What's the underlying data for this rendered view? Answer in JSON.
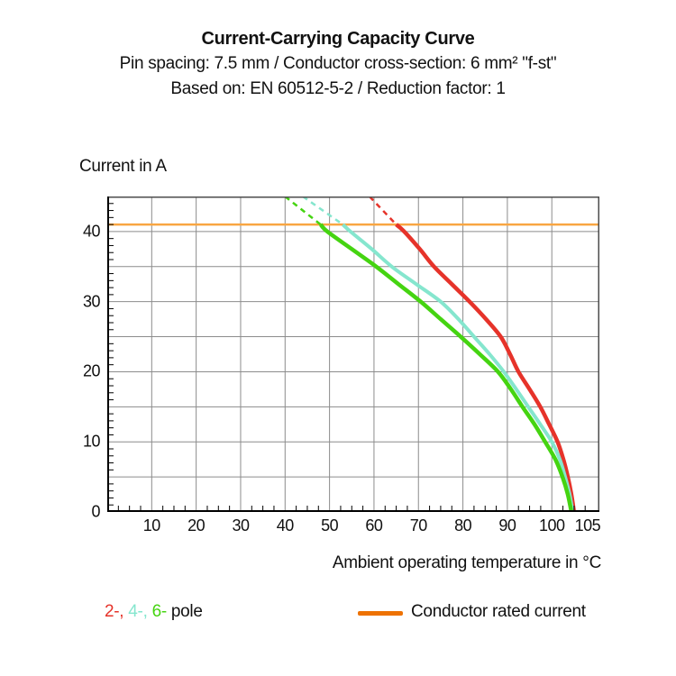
{
  "header": {
    "title": "Current-Carrying Capacity Curve",
    "subtitle1": "Pin spacing: 7.5 mm / Conductor cross-section: 6 mm² \"f-st\"",
    "subtitle2": "Based on: EN 60512-5-2 / Reduction factor: 1"
  },
  "chart_data": {
    "type": "line",
    "title": "Current-Carrying Capacity Curve",
    "ylabel": "Current in A",
    "xlabel": "Ambient operating temperature in °C",
    "xlim": [
      0,
      110.7
    ],
    "ylim": [
      0,
      45
    ],
    "grid": "on",
    "x_gridlines": [
      10,
      20,
      30,
      40,
      50,
      60,
      70,
      80,
      90,
      100
    ],
    "y_gridlines": [
      5,
      10,
      15,
      20,
      25,
      30,
      35,
      40
    ],
    "x_minor_tick_step": 2.5,
    "y_minor_tick_step": 1,
    "x_tick_labels": [
      {
        "v": 10,
        "label": "10"
      },
      {
        "v": 20,
        "label": "20"
      },
      {
        "v": 30,
        "label": "30"
      },
      {
        "v": 40,
        "label": "40"
      },
      {
        "v": 50,
        "label": "50"
      },
      {
        "v": 60,
        "label": "60"
      },
      {
        "v": 70,
        "label": "70"
      },
      {
        "v": 80,
        "label": "80"
      },
      {
        "v": 90,
        "label": "90"
      },
      {
        "v": 100,
        "label": "100"
      },
      {
        "v": 105,
        "label": "105",
        "dx": 15
      }
    ],
    "y_tick_labels": [
      {
        "v": 0,
        "label": "0"
      },
      {
        "v": 10,
        "label": "10"
      },
      {
        "v": 20,
        "label": "20"
      },
      {
        "v": 30,
        "label": "30"
      },
      {
        "v": 40,
        "label": "40"
      }
    ],
    "rated_current_line": {
      "value": 41,
      "color": "#F9A642",
      "label": "Conductor rated current"
    },
    "series": [
      {
        "name": "2-pole",
        "color": "#E6332A",
        "width": 4.5,
        "dashed_lead": [
          [
            59,
            45
          ],
          [
            65,
            41
          ]
        ],
        "points": [
          [
            65,
            41
          ],
          [
            66.8,
            40
          ],
          [
            70.3,
            37.5
          ],
          [
            73.5,
            35
          ],
          [
            77.5,
            32.5
          ],
          [
            81.5,
            30
          ],
          [
            85.2,
            27.5
          ],
          [
            88.5,
            25
          ],
          [
            90.6,
            22.5
          ],
          [
            92.5,
            20
          ],
          [
            95,
            17.5
          ],
          [
            97.4,
            15
          ],
          [
            99.4,
            12.5
          ],
          [
            101.3,
            10
          ],
          [
            102.6,
            7.5
          ],
          [
            103.6,
            5
          ],
          [
            104.4,
            2.5
          ],
          [
            105,
            0
          ]
        ]
      },
      {
        "name": "4-pole",
        "color": "#85E6CE",
        "width": 4,
        "dashed_lead": [
          [
            44,
            45
          ],
          [
            53,
            41
          ]
        ],
        "points": [
          [
            53,
            41
          ],
          [
            54.7,
            40
          ],
          [
            59.5,
            37.5
          ],
          [
            64,
            35
          ],
          [
            69.5,
            32.5
          ],
          [
            75,
            30
          ],
          [
            79,
            27.5
          ],
          [
            82.5,
            25
          ],
          [
            86,
            22.5
          ],
          [
            89.2,
            20
          ],
          [
            92,
            17.5
          ],
          [
            94.7,
            15
          ],
          [
            97.4,
            12.5
          ],
          [
            100,
            10
          ],
          [
            101.8,
            7.5
          ],
          [
            103,
            5
          ],
          [
            104,
            2.5
          ],
          [
            104.7,
            0
          ]
        ]
      },
      {
        "name": "6-pole",
        "color": "#45D411",
        "width": 4.5,
        "dashed_lead": [
          [
            40,
            45
          ],
          [
            48,
            41
          ]
        ],
        "points": [
          [
            48,
            41
          ],
          [
            49.5,
            40
          ],
          [
            55,
            37.5
          ],
          [
            60.5,
            35
          ],
          [
            65.5,
            32.5
          ],
          [
            70.5,
            30
          ],
          [
            75,
            27.5
          ],
          [
            79.5,
            25
          ],
          [
            83.8,
            22.5
          ],
          [
            87.9,
            20
          ],
          [
            90.8,
            17.5
          ],
          [
            93.4,
            15
          ],
          [
            96.1,
            12.5
          ],
          [
            98.5,
            10
          ],
          [
            100.8,
            7.5
          ],
          [
            102.4,
            5
          ],
          [
            103.6,
            2.5
          ],
          [
            104.4,
            0
          ]
        ]
      }
    ],
    "styles": {
      "grid_color": "#8C8C8C",
      "border_color": "#4D4D4D",
      "axis_color": "#000000",
      "background": "#FFFFFF"
    }
  },
  "legend": {
    "pole_items": [
      {
        "label": "2-,",
        "color": "#E6332A"
      },
      {
        "label": "4-,",
        "color": "#85E6CE"
      },
      {
        "label": "6-",
        "color": "#45D411"
      }
    ],
    "pole_suffix": "pole",
    "rated_label": "Conductor rated current",
    "rated_swatch_color": "#EE7203"
  }
}
